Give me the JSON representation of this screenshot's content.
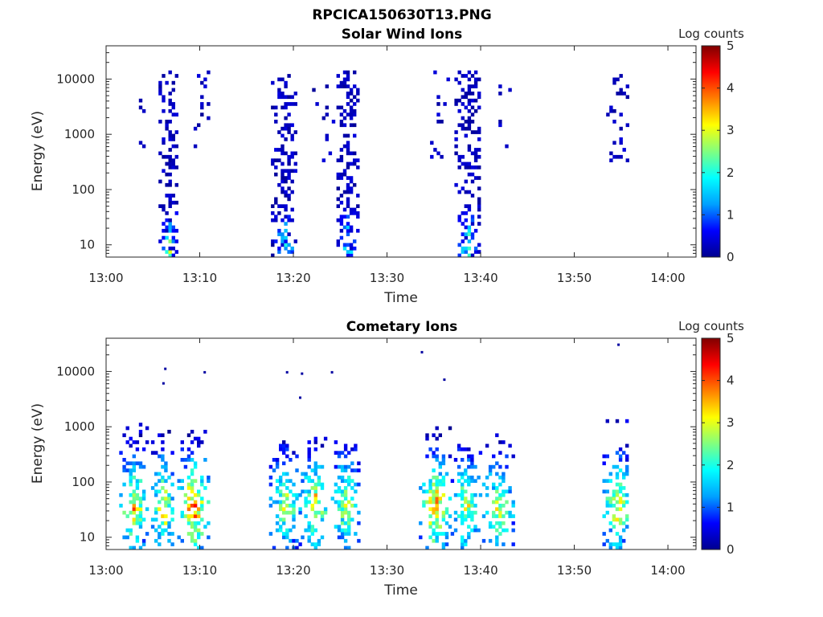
{
  "figure_title": "RPCICA150630T13.PNG",
  "colormap": [
    "#00008f",
    "#0000ff",
    "#00a0ff",
    "#00ffff",
    "#80ff80",
    "#ffff00",
    "#ff8000",
    "#ff0000",
    "#800000"
  ],
  "chart_data": [
    {
      "type": "heatmap",
      "title": "Solar Wind Ions",
      "xlabel": "Time",
      "ylabel": "Energy (eV)",
      "xlim": [
        "13:00",
        "14:03"
      ],
      "ylim": [
        6,
        40000
      ],
      "yscale": "log",
      "x_ticks": [
        "13:00",
        "13:10",
        "13:20",
        "13:30",
        "13:40",
        "13:50",
        "14:00"
      ],
      "y_ticks": [
        "10",
        "100",
        "1000",
        "10000"
      ],
      "colorbar": {
        "label": "Log counts",
        "range": [
          0,
          5
        ],
        "ticks": [
          "0",
          "1",
          "2",
          "3",
          "4",
          "5"
        ]
      },
      "bursts": [
        {
          "start_min": 2.8,
          "end_min": 4.2,
          "e_low": 400,
          "e_high": 10000,
          "peak": 0.8,
          "density": 0.12
        },
        {
          "start_min": 5.6,
          "end_min": 7.6,
          "e_low": 6,
          "e_high": 15000,
          "peak": 2.2,
          "density": 0.55
        },
        {
          "start_min": 9.0,
          "end_min": 10.8,
          "e_low": 500,
          "e_high": 15000,
          "peak": 0.6,
          "density": 0.15
        },
        {
          "start_min": 17.6,
          "end_min": 20.2,
          "e_low": 6,
          "e_high": 15000,
          "peak": 1.8,
          "density": 0.5
        },
        {
          "start_min": 22.0,
          "end_min": 24.2,
          "e_low": 300,
          "e_high": 9000,
          "peak": 0.6,
          "density": 0.12
        },
        {
          "start_min": 24.6,
          "end_min": 26.8,
          "e_low": 6,
          "e_high": 15000,
          "peak": 1.8,
          "density": 0.5
        },
        {
          "start_min": 34.6,
          "end_min": 36.6,
          "e_low": 300,
          "e_high": 15000,
          "peak": 0.7,
          "density": 0.12
        },
        {
          "start_min": 37.2,
          "end_min": 40.0,
          "e_low": 6,
          "e_high": 15000,
          "peak": 2.0,
          "density": 0.5
        },
        {
          "start_min": 41.2,
          "end_min": 43.2,
          "e_low": 400,
          "e_high": 9000,
          "peak": 0.5,
          "density": 0.1
        },
        {
          "start_min": 53.4,
          "end_min": 55.8,
          "e_low": 300,
          "e_high": 15000,
          "peak": 0.7,
          "density": 0.2
        }
      ]
    },
    {
      "type": "heatmap",
      "title": "Cometary Ions",
      "xlabel": "Time",
      "ylabel": "Energy (eV)",
      "xlim": [
        "13:00",
        "14:03"
      ],
      "ylim": [
        6,
        40000
      ],
      "yscale": "log",
      "x_ticks": [
        "13:00",
        "13:10",
        "13:20",
        "13:30",
        "13:40",
        "13:50",
        "14:00"
      ],
      "y_ticks": [
        "10",
        "100",
        "1000",
        "10000"
      ],
      "colorbar": {
        "label": "Log counts",
        "range": [
          0,
          5
        ],
        "ticks": [
          "0",
          "1",
          "2",
          "3",
          "4",
          "5"
        ]
      },
      "bursts": [
        {
          "start_min": 1.4,
          "end_min": 4.4,
          "e_low": 6,
          "e_high": 1300,
          "peak": 3.6,
          "density": 0.6
        },
        {
          "start_min": 4.8,
          "end_min": 7.2,
          "e_low": 6,
          "e_high": 900,
          "peak": 3.5,
          "density": 0.6
        },
        {
          "start_min": 7.6,
          "end_min": 10.8,
          "e_low": 6,
          "e_high": 900,
          "peak": 4.2,
          "density": 0.6
        },
        {
          "start_min": 17.4,
          "end_min": 20.6,
          "e_low": 6,
          "e_high": 600,
          "peak": 3.0,
          "density": 0.6
        },
        {
          "start_min": 20.8,
          "end_min": 23.6,
          "e_low": 6,
          "e_high": 800,
          "peak": 3.6,
          "density": 0.6
        },
        {
          "start_min": 24.0,
          "end_min": 27.0,
          "e_low": 6,
          "e_high": 600,
          "peak": 3.0,
          "density": 0.6
        },
        {
          "start_min": 33.4,
          "end_min": 36.8,
          "e_low": 6,
          "e_high": 1000,
          "peak": 4.0,
          "density": 0.6
        },
        {
          "start_min": 36.8,
          "end_min": 39.8,
          "e_low": 6,
          "e_high": 700,
          "peak": 3.0,
          "density": 0.6
        },
        {
          "start_min": 39.8,
          "end_min": 43.4,
          "e_low": 6,
          "e_high": 1000,
          "peak": 3.0,
          "density": 0.6
        },
        {
          "start_min": 53.0,
          "end_min": 55.8,
          "e_low": 6,
          "e_high": 1400,
          "peak": 3.5,
          "density": 0.6
        }
      ],
      "outliers": [
        {
          "min": 6.2,
          "energy": 11000
        },
        {
          "min": 6.0,
          "energy": 6000
        },
        {
          "min": 10.4,
          "energy": 9500
        },
        {
          "min": 19.2,
          "energy": 9500
        },
        {
          "min": 20.8,
          "energy": 9000
        },
        {
          "min": 20.6,
          "energy": 3300
        },
        {
          "min": 24.0,
          "energy": 9500
        },
        {
          "min": 33.6,
          "energy": 22000
        },
        {
          "min": 36.0,
          "energy": 7000
        },
        {
          "min": 54.6,
          "energy": 30000
        }
      ]
    }
  ]
}
